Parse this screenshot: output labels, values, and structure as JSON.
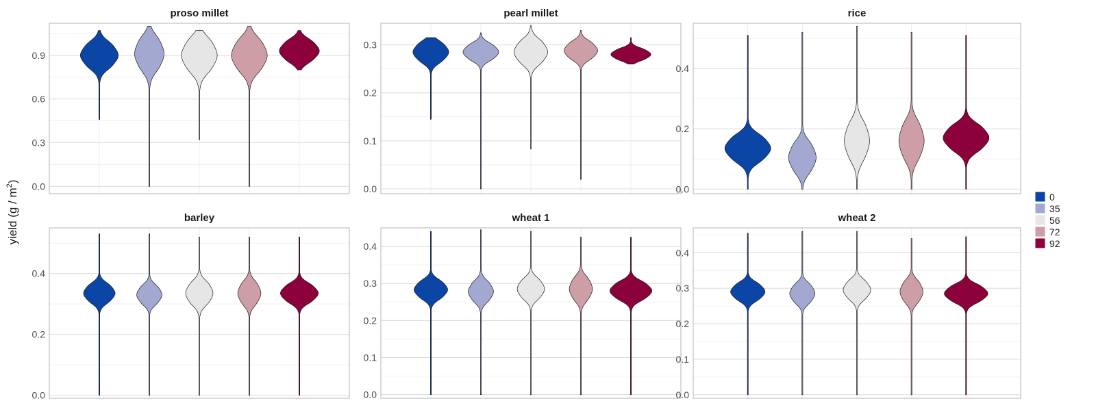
{
  "chart_data": {
    "type": "violin",
    "ylabel": "yield (g / m²)",
    "ylabel_main": "yield (g / m",
    "ylabel_sup": "2",
    "ylabel_close": ")",
    "legend": {
      "placement": "right",
      "entries": [
        {
          "label": "0",
          "color": "#0b45a6"
        },
        {
          "label": "35",
          "color": "#a3a8d0"
        },
        {
          "label": "56",
          "color": "#e6e6e6"
        },
        {
          "label": "72",
          "color": "#cd9ea6"
        },
        {
          "label": "92",
          "color": "#8c003c"
        }
      ]
    },
    "grid": true,
    "panels": [
      {
        "title": "proso millet",
        "ylim": [
          -0.05,
          1.12
        ],
        "yticks": [
          0.0,
          0.3,
          0.6,
          0.9
        ],
        "ytick_labels": [
          "0.0",
          "0.3",
          "0.6",
          "0.9"
        ],
        "groups": [
          {
            "label": "0",
            "min": 0.46,
            "max": 1.07,
            "center": 0.9,
            "mode_width": 0.9,
            "spread": 0.07
          },
          {
            "label": "35",
            "min": 0.0,
            "max": 1.1,
            "center": 0.91,
            "mode_width": 0.7,
            "spread": 0.09
          },
          {
            "label": "56",
            "min": 0.32,
            "max": 1.07,
            "center": 0.9,
            "mode_width": 0.85,
            "spread": 0.09
          },
          {
            "label": "72",
            "min": 0.0,
            "max": 1.1,
            "center": 0.9,
            "mode_width": 0.85,
            "spread": 0.09
          },
          {
            "label": "92",
            "min": 0.8,
            "max": 1.07,
            "center": 0.93,
            "mode_width": 0.95,
            "spread": 0.06
          }
        ]
      },
      {
        "title": "pearl millet",
        "ylim": [
          -0.01,
          0.345
        ],
        "yticks": [
          0.0,
          0.1,
          0.2,
          0.3
        ],
        "ytick_labels": [
          "0.0",
          "0.1",
          "0.2",
          "0.3"
        ],
        "groups": [
          {
            "label": "0",
            "min": 0.145,
            "max": 0.315,
            "center": 0.285,
            "mode_width": 0.85,
            "spread": 0.017
          },
          {
            "label": "35",
            "min": 0.0,
            "max": 0.325,
            "center": 0.285,
            "mode_width": 0.85,
            "spread": 0.014
          },
          {
            "label": "56",
            "min": 0.083,
            "max": 0.34,
            "center": 0.285,
            "mode_width": 0.8,
            "spread": 0.02
          },
          {
            "label": "72",
            "min": 0.02,
            "max": 0.33,
            "center": 0.288,
            "mode_width": 0.8,
            "spread": 0.015
          },
          {
            "label": "92",
            "min": 0.26,
            "max": 0.315,
            "center": 0.28,
            "mode_width": 0.95,
            "spread": 0.01
          }
        ]
      },
      {
        "title": "rice",
        "ylim": [
          -0.015,
          0.55
        ],
        "yticks": [
          0.0,
          0.2,
          0.4
        ],
        "ytick_labels": [
          "0.0",
          "0.2",
          "0.4"
        ],
        "groups": [
          {
            "label": "0",
            "min": 0.0,
            "max": 0.51,
            "center": 0.135,
            "mode_width": 1.0,
            "spread": 0.035
          },
          {
            "label": "35",
            "min": 0.0,
            "max": 0.52,
            "center": 0.105,
            "mode_width": 0.6,
            "spread": 0.04
          },
          {
            "label": "56",
            "min": 0.0,
            "max": 0.54,
            "center": 0.16,
            "mode_width": 0.55,
            "spread": 0.05
          },
          {
            "label": "72",
            "min": 0.0,
            "max": 0.52,
            "center": 0.16,
            "mode_width": 0.55,
            "spread": 0.05
          },
          {
            "label": "92",
            "min": 0.0,
            "max": 0.51,
            "center": 0.17,
            "mode_width": 1.0,
            "spread": 0.035
          }
        ]
      },
      {
        "title": "barley",
        "ylim": [
          -0.01,
          0.55
        ],
        "yticks": [
          0.0,
          0.2,
          0.4
        ],
        "ytick_labels": [
          "0.0",
          "0.2",
          "0.4"
        ],
        "groups": [
          {
            "label": "0",
            "min": 0.0,
            "max": 0.53,
            "center": 0.335,
            "mode_width": 0.75,
            "spread": 0.025
          },
          {
            "label": "35",
            "min": 0.0,
            "max": 0.53,
            "center": 0.33,
            "mode_width": 0.6,
            "spread": 0.025
          },
          {
            "label": "56",
            "min": 0.0,
            "max": 0.52,
            "center": 0.335,
            "mode_width": 0.65,
            "spread": 0.03
          },
          {
            "label": "72",
            "min": 0.0,
            "max": 0.52,
            "center": 0.335,
            "mode_width": 0.55,
            "spread": 0.03
          },
          {
            "label": "92",
            "min": 0.0,
            "max": 0.52,
            "center": 0.335,
            "mode_width": 0.9,
            "spread": 0.025
          }
        ]
      },
      {
        "title": "wheat 1",
        "ylim": [
          -0.01,
          0.45
        ],
        "yticks": [
          0.0,
          0.1,
          0.2,
          0.3,
          0.4
        ],
        "ytick_labels": [
          "0.0",
          "0.1",
          "0.2",
          "0.3",
          "0.4"
        ],
        "groups": [
          {
            "label": "0",
            "min": 0.0,
            "max": 0.44,
            "center": 0.283,
            "mode_width": 0.8,
            "spread": 0.02
          },
          {
            "label": "35",
            "min": 0.0,
            "max": 0.445,
            "center": 0.278,
            "mode_width": 0.6,
            "spread": 0.022
          },
          {
            "label": "56",
            "min": 0.0,
            "max": 0.44,
            "center": 0.285,
            "mode_width": 0.65,
            "spread": 0.022
          },
          {
            "label": "72",
            "min": 0.0,
            "max": 0.425,
            "center": 0.285,
            "mode_width": 0.55,
            "spread": 0.025
          },
          {
            "label": "92",
            "min": 0.0,
            "max": 0.425,
            "center": 0.28,
            "mode_width": 1.0,
            "spread": 0.02
          }
        ]
      },
      {
        "title": "wheat 2",
        "ylim": [
          -0.01,
          0.47
        ],
        "yticks": [
          0.0,
          0.1,
          0.2,
          0.3,
          0.4
        ],
        "ytick_labels": [
          "0.0",
          "0.1",
          "0.2",
          "0.3",
          "0.4"
        ],
        "groups": [
          {
            "label": "0",
            "min": 0.0,
            "max": 0.455,
            "center": 0.29,
            "mode_width": 0.75,
            "spread": 0.02
          },
          {
            "label": "35",
            "min": 0.0,
            "max": 0.46,
            "center": 0.285,
            "mode_width": 0.55,
            "spread": 0.022
          },
          {
            "label": "56",
            "min": 0.0,
            "max": 0.46,
            "center": 0.295,
            "mode_width": 0.6,
            "spread": 0.022
          },
          {
            "label": "72",
            "min": 0.0,
            "max": 0.44,
            "center": 0.29,
            "mode_width": 0.5,
            "spread": 0.025
          },
          {
            "label": "92",
            "min": 0.0,
            "max": 0.445,
            "center": 0.285,
            "mode_width": 0.95,
            "spread": 0.02
          }
        ]
      }
    ]
  }
}
